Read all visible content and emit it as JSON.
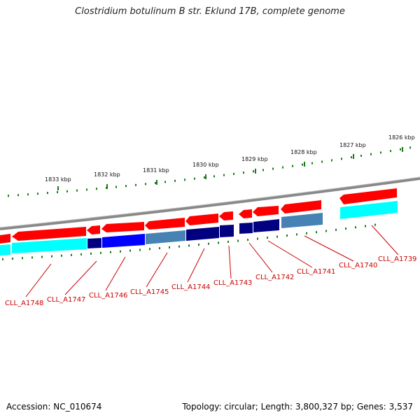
{
  "title": "Clostridium botulinum B str. Eklund 17B, complete genome",
  "footer": {
    "accession": "Accession: NC_010674",
    "summary": "Topology: circular; Length: 3,800,327 bp; Genes: 3,537"
  },
  "colors": {
    "forward_gene": "#ff0000",
    "reverse_gene": "#00ffff",
    "backbone": "#888888",
    "tick": "#1a7a1a",
    "label": "#cc0000",
    "cds_dark": "#000080",
    "cds_blue": "#0000ff",
    "cds_steel": "#4682b4"
  },
  "scale_ticks": [
    {
      "label": "1833 kbp"
    },
    {
      "label": "1832 kbp"
    },
    {
      "label": "1831 kbp"
    },
    {
      "label": "1830 kbp"
    },
    {
      "label": "1829 kbp"
    },
    {
      "label": "1828 kbp"
    },
    {
      "label": "1827 kbp"
    },
    {
      "label": "1826 kbp"
    }
  ],
  "gene_labels": [
    {
      "text": "CLL_A1748"
    },
    {
      "text": "CLL_A1747"
    },
    {
      "text": "CLL_A1746"
    },
    {
      "text": "CLL_A1745"
    },
    {
      "text": "CLL_A1744"
    },
    {
      "text": "CLL_A1743"
    },
    {
      "text": "CLL_A1742"
    },
    {
      "text": "CLL_A1741"
    },
    {
      "text": "CLL_A1740"
    },
    {
      "text": "CLL_A1739"
    }
  ]
}
